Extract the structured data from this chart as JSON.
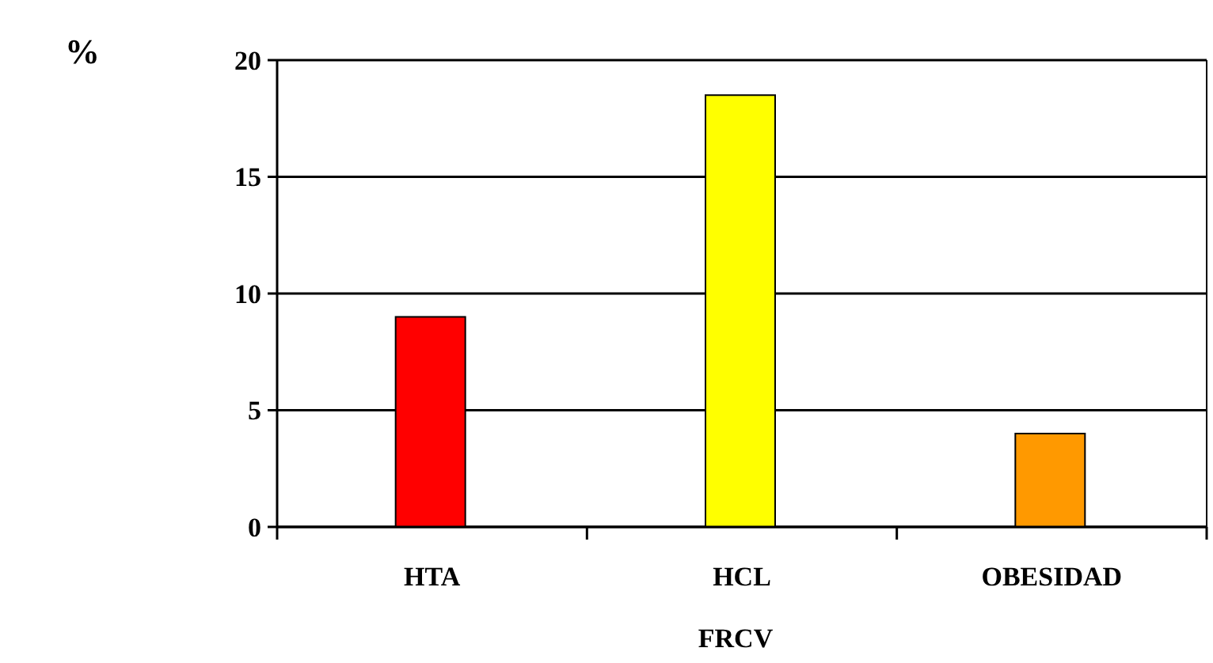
{
  "chart_data": {
    "type": "bar",
    "ylabel": "%",
    "xlabel": "FRCV",
    "categories": [
      "HTA",
      "HCL",
      "OBESIDAD"
    ],
    "values": [
      9,
      18.5,
      4
    ],
    "colors": [
      "#ff0000",
      "#ffff00",
      "#ff9900"
    ],
    "ylim": [
      0,
      20
    ],
    "yticks": [
      0,
      5,
      10,
      15,
      20
    ],
    "grid": "y"
  }
}
